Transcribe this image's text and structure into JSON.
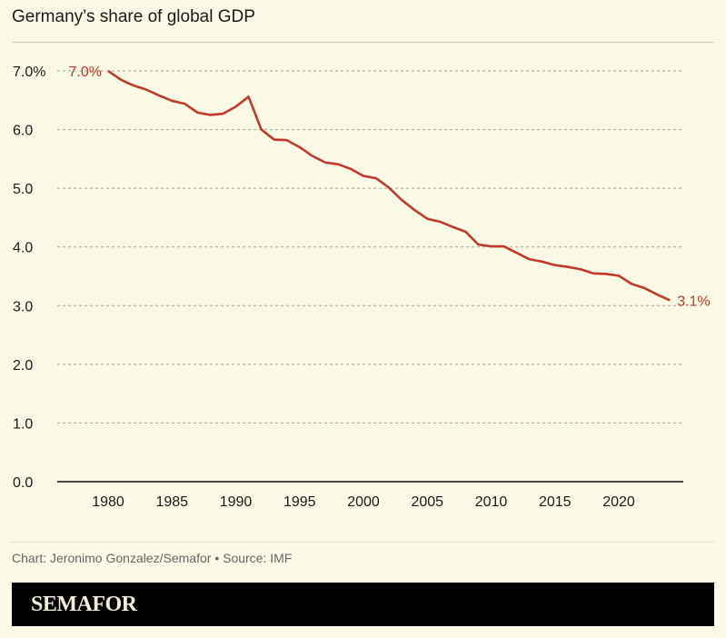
{
  "chart_data": {
    "type": "line",
    "title": "Germany’s share of global GDP",
    "xlabel": "",
    "ylabel": "",
    "ylim": [
      0,
      7
    ],
    "xlim": [
      1976,
      2026
    ],
    "grid": true,
    "yticks": [
      "0.0",
      "1.0",
      "2.0",
      "3.0",
      "4.0",
      "5.0",
      "6.0",
      "7.0%"
    ],
    "ytick_values": [
      0,
      1,
      2,
      3,
      4,
      5,
      6,
      7
    ],
    "xticks": [
      1980,
      1985,
      1990,
      1995,
      2000,
      2005,
      2010,
      2015,
      2020
    ],
    "x": [
      1980,
      1981,
      1982,
      1983,
      1984,
      1985,
      1986,
      1987,
      1988,
      1989,
      1990,
      1991,
      1992,
      1993,
      1994,
      1995,
      1996,
      1997,
      1998,
      1999,
      2000,
      2001,
      2002,
      2003,
      2004,
      2005,
      2006,
      2007,
      2008,
      2009,
      2010,
      2011,
      2012,
      2013,
      2014,
      2015,
      2016,
      2017,
      2018,
      2019,
      2020,
      2021,
      2022,
      2023,
      2024
    ],
    "series": [
      {
        "values": [
          7.0,
          6.85,
          6.75,
          6.68,
          6.58,
          6.49,
          6.44,
          6.29,
          6.25,
          6.27,
          6.39,
          6.56,
          6.0,
          5.83,
          5.82,
          5.7,
          5.55,
          5.44,
          5.41,
          5.33,
          5.21,
          5.17,
          5.01,
          4.8,
          4.63,
          4.48,
          4.43,
          4.34,
          4.26,
          4.04,
          4.01,
          4.01,
          3.9,
          3.79,
          3.75,
          3.69,
          3.66,
          3.62,
          3.55,
          3.54,
          3.51,
          3.37,
          3.3,
          3.19,
          3.09
        ],
        "color": "#c0392b"
      }
    ],
    "annotations": {
      "start": "7.0%",
      "end": "3.1%"
    }
  },
  "footer": {
    "credit": "Chart: Jeronimo Gonzalez/Semafor • Source: IMF"
  },
  "brand": {
    "logo": "SEMAFOR"
  }
}
